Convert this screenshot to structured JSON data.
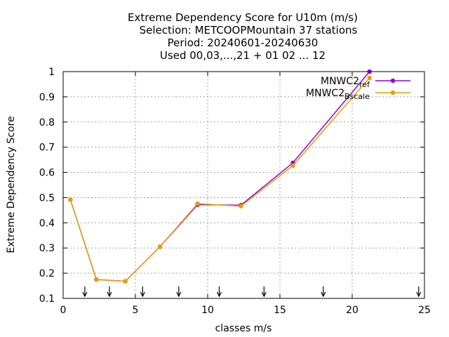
{
  "chart_data": {
    "type": "line",
    "title_lines": [
      "Extreme Dependency Score  for U10m (m/s)",
      "Selection: METCOOPMountain     37 stations",
      "Period: 20240601-20240630",
      "Used 00,03,...,21 + 01 02 ... 12"
    ],
    "xlabel": "classes m/s",
    "ylabel": "Extreme Dependency Score",
    "xlim": [
      0,
      25
    ],
    "ylim": [
      0.1,
      1.0
    ],
    "xticks": [
      0,
      5,
      10,
      15,
      20,
      25
    ],
    "yticks": [
      0.1,
      0.2,
      0.3,
      0.4,
      0.5,
      0.6,
      0.7,
      0.8,
      0.9,
      1.0
    ],
    "ytick_labels": [
      "0.1",
      "0.2",
      "0.3",
      "0.4",
      "0.5",
      "0.6",
      "0.7",
      "0.8",
      "0.9",
      "1"
    ],
    "grid": true,
    "legend_position": "top-right",
    "series": [
      {
        "name": "MNWC2_ref",
        "name_main": "MNWC2",
        "name_sub": "ref",
        "color": "#9400d3",
        "x": [
          0.5,
          2.3,
          4.3,
          6.7,
          9.3,
          12.3,
          15.9,
          21.2
        ],
        "y": [
          0.492,
          0.175,
          0.168,
          0.305,
          0.472,
          0.47,
          0.638,
          1.0
        ]
      },
      {
        "name": "MNWC2_Bscale",
        "name_main": "MNWC2",
        "name_sub": "Bscale",
        "color": "#e69f00",
        "x": [
          0.5,
          2.3,
          4.3,
          6.7,
          9.3,
          12.3,
          15.9,
          21.2
        ],
        "y": [
          0.492,
          0.175,
          0.168,
          0.305,
          0.476,
          0.466,
          0.627,
          0.975
        ]
      }
    ],
    "arrows_x": [
      1.5,
      3.2,
      5.5,
      8.0,
      10.8,
      13.9,
      18.0,
      24.6
    ]
  }
}
